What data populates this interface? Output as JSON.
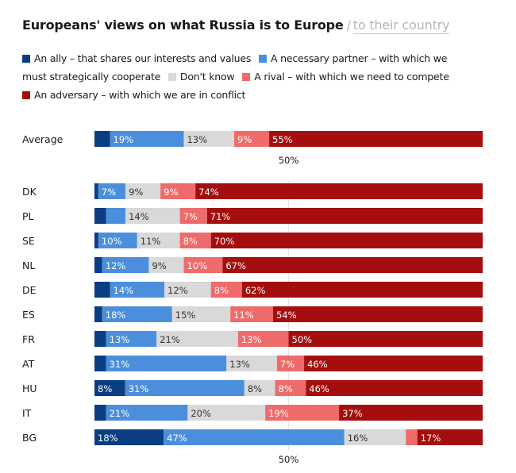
{
  "title": {
    "main": "Europeans' views on what Russia is to Europe",
    "separator": "/",
    "alternate": "to their country"
  },
  "legend": [
    {
      "label": "An ally – that shares our interests and values",
      "color": "#0b3d82"
    },
    {
      "label": "A necessary partner – with which we must strategically cooperate",
      "color": "#4b8fdc"
    },
    {
      "label": "Don't know",
      "color": "#d9d9d9"
    },
    {
      "label": "A rival – with which we need to compete",
      "color": "#ef6b6b"
    },
    {
      "label": "An adversary – with which we are in conflict",
      "color": "#a50e0e"
    }
  ],
  "chart_data": {
    "type": "bar",
    "orientation": "horizontal",
    "stacked": true,
    "percent_stacked": true,
    "series_names": [
      "An ally",
      "A necessary partner",
      "Don't know",
      "A rival",
      "An adversary"
    ],
    "series_colors": [
      "#0b3d82",
      "#4b8fdc",
      "#d9d9d9",
      "#ef6b6b",
      "#a50e0e"
    ],
    "midline_label": "50%",
    "rows": [
      {
        "label": "Average",
        "values": [
          4,
          19,
          13,
          9,
          55
        ],
        "labels": [
          "",
          "19%",
          "13%",
          "9%",
          "55%"
        ]
      },
      {
        "label": "DK",
        "values": [
          1,
          7,
          9,
          9,
          74
        ],
        "labels": [
          "",
          "7%",
          "9%",
          "9%",
          "74%"
        ]
      },
      {
        "label": "PL",
        "values": [
          3,
          5,
          14,
          7,
          71
        ],
        "labels": [
          "",
          "",
          "14%",
          "7%",
          "71%"
        ]
      },
      {
        "label": "SE",
        "values": [
          1,
          10,
          11,
          8,
          70
        ],
        "labels": [
          "",
          "10%",
          "11%",
          "8%",
          "70%"
        ]
      },
      {
        "label": "NL",
        "values": [
          2,
          12,
          9,
          10,
          67
        ],
        "labels": [
          "",
          "12%",
          "9%",
          "10%",
          "67%"
        ]
      },
      {
        "label": "DE",
        "values": [
          4,
          14,
          12,
          8,
          62
        ],
        "labels": [
          "",
          "14%",
          "12%",
          "8%",
          "62%"
        ]
      },
      {
        "label": "ES",
        "values": [
          2,
          18,
          15,
          11,
          54
        ],
        "labels": [
          "",
          "18%",
          "15%",
          "11%",
          "54%"
        ]
      },
      {
        "label": "FR",
        "values": [
          3,
          13,
          21,
          13,
          50
        ],
        "labels": [
          "",
          "13%",
          "21%",
          "13%",
          "50%"
        ]
      },
      {
        "label": "AT",
        "values": [
          3,
          31,
          13,
          7,
          46
        ],
        "labels": [
          "",
          "31%",
          "13%",
          "7%",
          "46%"
        ]
      },
      {
        "label": "HU",
        "values": [
          8,
          31,
          8,
          8,
          46
        ],
        "labels": [
          "8%",
          "31%",
          "8%",
          "8%",
          "46%"
        ]
      },
      {
        "label": "IT",
        "values": [
          3,
          21,
          20,
          19,
          37
        ],
        "labels": [
          "",
          "21%",
          "20%",
          "19%",
          "37%"
        ]
      },
      {
        "label": "BG",
        "values": [
          18,
          47,
          16,
          3,
          17
        ],
        "labels": [
          "18%",
          "47%",
          "16%",
          "",
          "17%"
        ]
      }
    ]
  }
}
